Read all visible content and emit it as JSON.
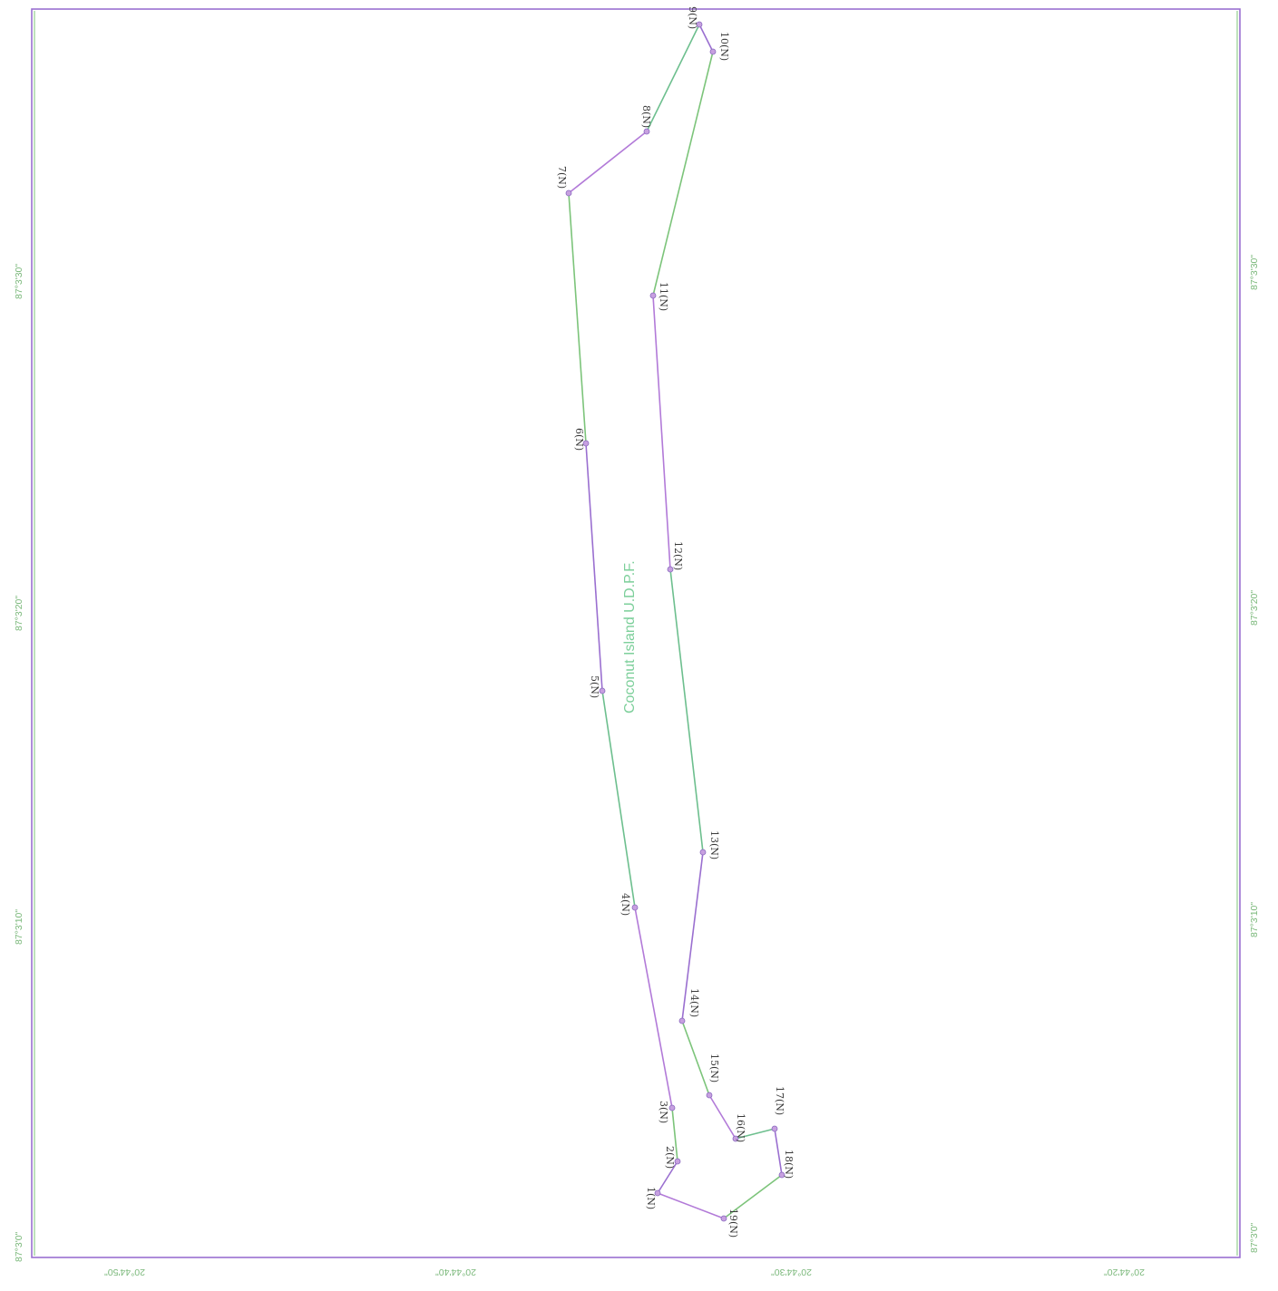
{
  "map": {
    "title": "Coconut Island U.D.P.F.",
    "colors": {
      "frame_green": "#7cc47a",
      "frame_purple": "#9a6fd0",
      "title_green": "#7ccf9a",
      "title_orange": "#e2a15a",
      "title_blue": "#6a88d0",
      "label_text": "#3a3a3a",
      "point_fill": "#c7a0e0"
    },
    "boundary_points": [
      {
        "id": 1,
        "label": "1(N)"
      },
      {
        "id": 2,
        "label": "2(N)"
      },
      {
        "id": 3,
        "label": "3(N)"
      },
      {
        "id": 4,
        "label": "4(N)"
      },
      {
        "id": 5,
        "label": "5(N)"
      },
      {
        "id": 6,
        "label": "6(N)"
      },
      {
        "id": 7,
        "label": "7(N)"
      },
      {
        "id": 8,
        "label": "8(N)"
      },
      {
        "id": 9,
        "label": "9(N)"
      },
      {
        "id": 10,
        "label": "10(N)"
      },
      {
        "id": 11,
        "label": "11(N)"
      },
      {
        "id": 12,
        "label": "12(N)"
      },
      {
        "id": 13,
        "label": "13(N)"
      },
      {
        "id": 14,
        "label": "14(N)"
      },
      {
        "id": 15,
        "label": "15(N)"
      },
      {
        "id": 16,
        "label": "16(N)"
      },
      {
        "id": 17,
        "label": "17(N)"
      },
      {
        "id": 18,
        "label": "18(N)"
      },
      {
        "id": 19,
        "label": "19(N)"
      }
    ],
    "left_ticks": [
      "87°3'0\"",
      "87°3'10\"",
      "87°3'20\"",
      "87°3'30\""
    ],
    "right_ticks": [
      "87°3'0\"",
      "87°3'10\"",
      "87°3'20\"",
      "87°3'30\""
    ],
    "bottom_ticks": [
      "20°44'50\"",
      "20°44'40\"",
      "20°44'30\"",
      "20°44'20\""
    ]
  }
}
